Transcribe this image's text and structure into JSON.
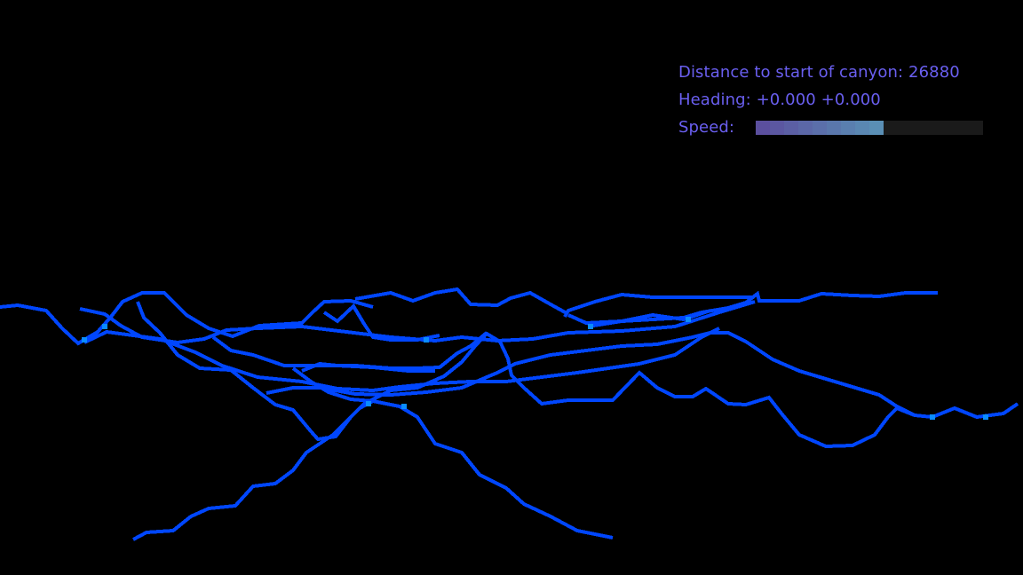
{
  "hud": {
    "distance_label": "Distance to start of canyon:",
    "distance_value": "26880",
    "heading_label": "Heading:",
    "heading_x": "+0.000",
    "heading_y": "+0.000",
    "speed_label": "Speed:",
    "speed_fraction": 0.55
  },
  "colors": {
    "terrain": "#0046ff",
    "terrain_highlight": "#0a8cff",
    "hud_text": "#6a5ff0",
    "speed_bar_start": "#5b4f9e",
    "speed_bar_end": "#5a8fb5",
    "speed_bar_empty": "#1a1a1a"
  }
}
